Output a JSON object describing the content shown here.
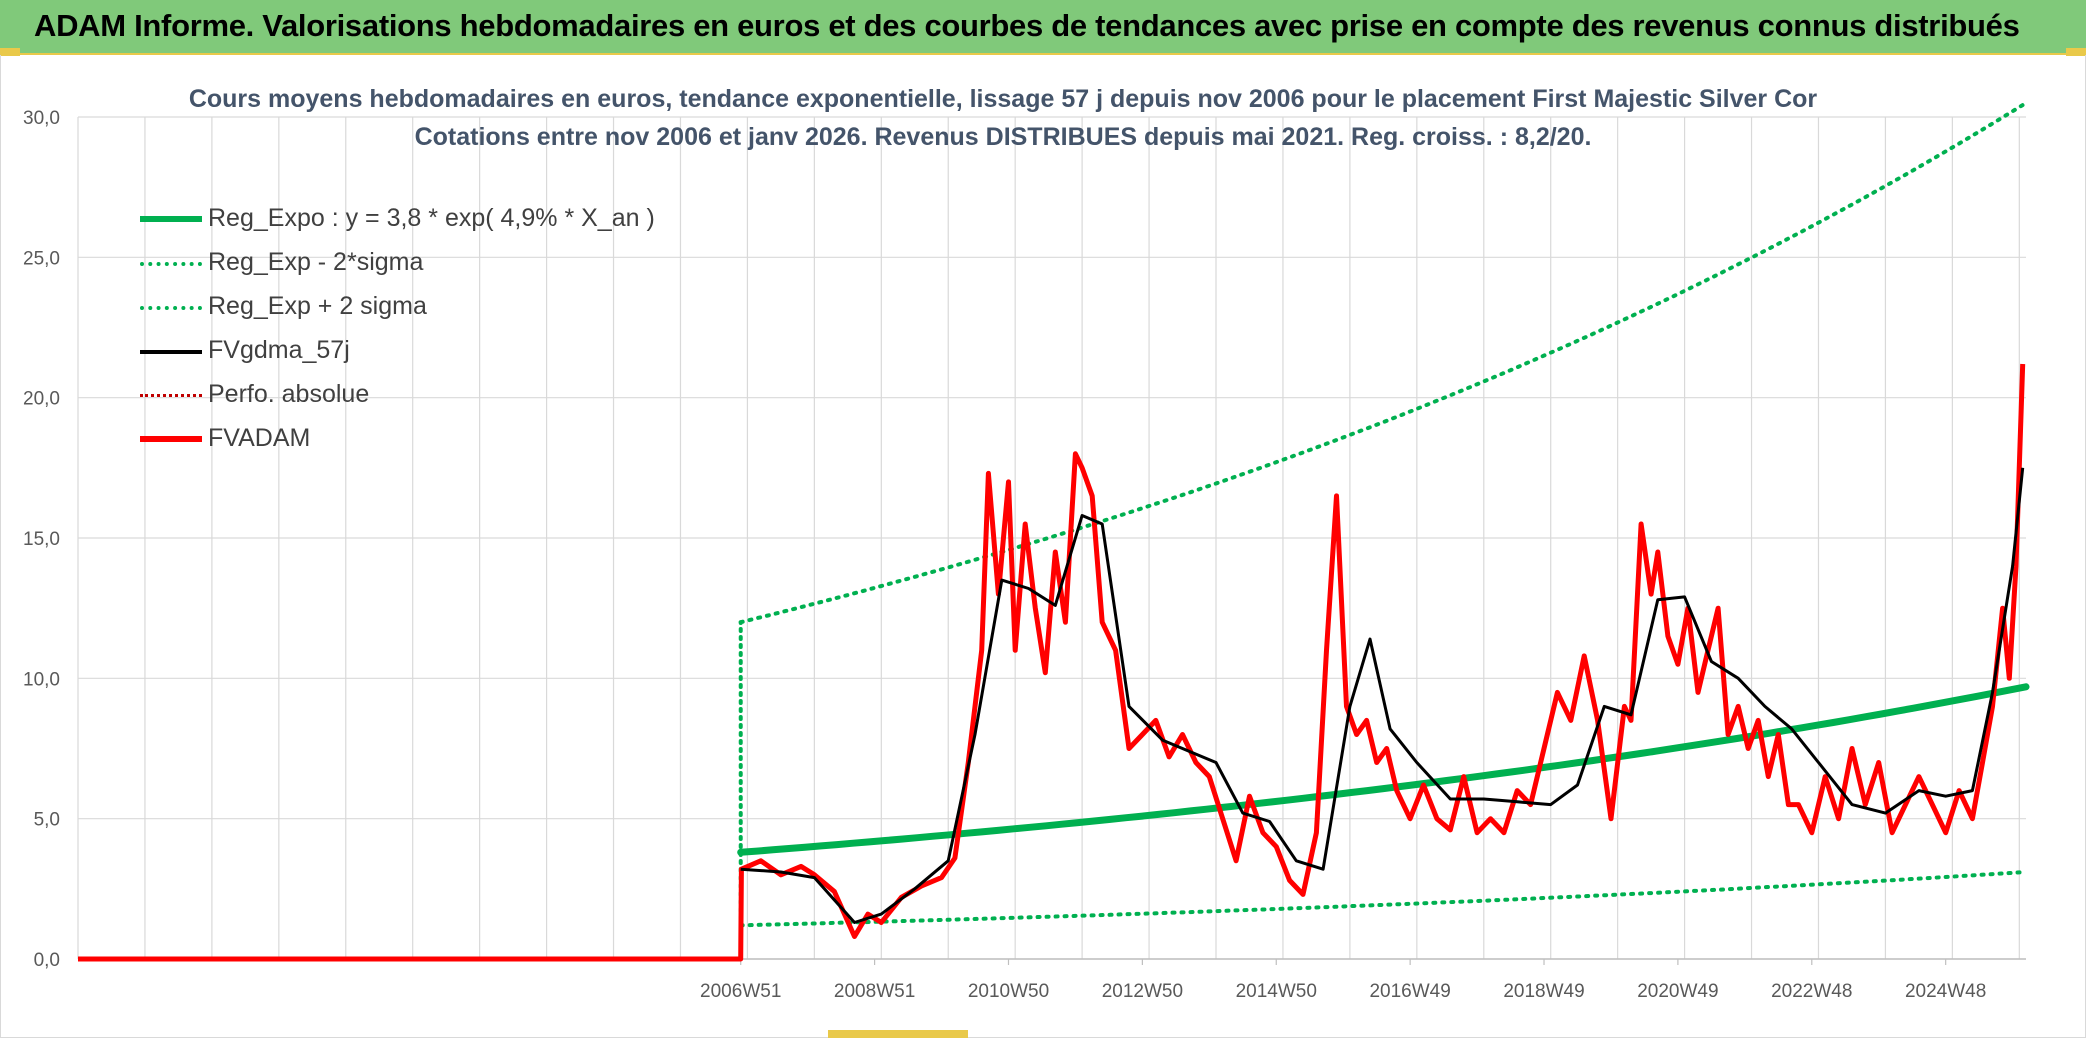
{
  "banner": {
    "title": "ADAM Informe. Valorisations hebdomadaires en euros et des courbes de tendances avec prise en compte des revenus connus distribués"
  },
  "colors": {
    "banner_bg": "#80c97a",
    "accent_yellow": "#e9c94a",
    "title_text": "#44546a",
    "reg_green": "#00b050",
    "sigma_green": "#00b050",
    "gdma_black": "#000000",
    "adam_red": "#ff0000",
    "perf_red": "#c00000",
    "grid": "#d9d9d9"
  },
  "chart_data": {
    "type": "line",
    "title": "Cours moyens hebdomadaires en euros, tendance exponentielle, lissage 57 j depuis nov 2006 pour le placement First Majestic Silver Cor",
    "subtitle": "Cotations entre nov 2006 et janv 2026. Revenus DISTRIBUES depuis mai 2021. Reg. croiss. : 8,2/20.",
    "xlabel": "",
    "ylabel": "",
    "ylim": [
      0,
      30
    ],
    "yticks": [
      "0,0",
      "5,0",
      "10,0",
      "15,0",
      "20,0",
      "25,0",
      "30,0"
    ],
    "xticks": [
      "2006W51",
      "2008W51",
      "2010W50",
      "2012W50",
      "2014W50",
      "2016W49",
      "2018W49",
      "2020W49",
      "2022W48",
      "2024W48"
    ],
    "x_range": [
      1997.0,
      2026.1
    ],
    "data_start": 2006.9,
    "grid": true,
    "legend_position": "top-left",
    "series": [
      {
        "name": "Reg_Expo : y = 3,8 * exp( 4,9% *  X_an )",
        "style": "solid-thick",
        "color": "#00b050",
        "x": [
          2006.9,
          2026.1
        ],
        "values": [
          3.8,
          9.7
        ]
      },
      {
        "name": "Reg_Exp - 2*sigma",
        "style": "dotted",
        "color": "#00b050",
        "x": [
          2006.9,
          2026.1
        ],
        "values": [
          1.2,
          3.1
        ]
      },
      {
        "name": "Reg_Exp + 2 sigma",
        "style": "dotted",
        "color": "#00b050",
        "x": [
          2006.9,
          2026.1
        ],
        "values": [
          12.0,
          30.5
        ]
      },
      {
        "name": "FVgdma_57j",
        "style": "solid",
        "color": "#000000",
        "x": [
          2006.9,
          2007.5,
          2008.0,
          2008.6,
          2009.0,
          2009.5,
          2010.0,
          2010.4,
          2010.8,
          2011.2,
          2011.6,
          2012.0,
          2012.3,
          2012.7,
          2013.2,
          2013.7,
          2014.0,
          2014.4,
          2014.8,
          2015.2,
          2015.6,
          2016.0,
          2016.3,
          2016.6,
          2017.0,
          2017.5,
          2018.0,
          2018.5,
          2019.0,
          2019.4,
          2019.8,
          2020.2,
          2020.6,
          2021.0,
          2021.4,
          2021.8,
          2022.2,
          2022.6,
          2023.0,
          2023.5,
          2024.0,
          2024.5,
          2024.9,
          2025.3,
          2025.6,
          2025.9,
          2026.05
        ],
        "values": [
          3.2,
          3.1,
          2.9,
          1.3,
          1.6,
          2.5,
          3.5,
          8.0,
          13.5,
          13.2,
          12.6,
          15.8,
          15.5,
          9.0,
          7.8,
          7.3,
          7.0,
          5.2,
          4.9,
          3.5,
          3.2,
          9.0,
          11.4,
          8.2,
          7.0,
          5.7,
          5.7,
          5.6,
          5.5,
          6.2,
          9.0,
          8.7,
          12.8,
          12.9,
          10.6,
          10.0,
          9.0,
          8.2,
          7.0,
          5.5,
          5.2,
          6.0,
          5.8,
          6.0,
          9.5,
          14.0,
          17.5
        ]
      },
      {
        "name": "Perfo. absolue",
        "style": "dotted",
        "color": "#c00000",
        "x": [
          1997.0,
          2006.9
        ],
        "values": [
          0.0,
          0.0
        ]
      },
      {
        "name": "FVADAM",
        "style": "solid-thick",
        "color": "#ff0000",
        "x": [
          1997.0,
          2006.9,
          2006.91,
          2007.2,
          2007.5,
          2007.8,
          2008.0,
          2008.3,
          2008.6,
          2008.8,
          2009.0,
          2009.3,
          2009.6,
          2009.9,
          2010.1,
          2010.3,
          2010.5,
          2010.6,
          2010.75,
          2010.9,
          2011.0,
          2011.15,
          2011.3,
          2011.45,
          2011.6,
          2011.75,
          2011.9,
          2012.0,
          2012.15,
          2012.3,
          2012.5,
          2012.7,
          2012.9,
          2013.1,
          2013.3,
          2013.5,
          2013.7,
          2013.9,
          2014.1,
          2014.3,
          2014.5,
          2014.7,
          2014.9,
          2015.1,
          2015.3,
          2015.5,
          2015.65,
          2015.8,
          2015.95,
          2016.1,
          2016.25,
          2016.4,
          2016.55,
          2016.7,
          2016.9,
          2017.1,
          2017.3,
          2017.5,
          2017.7,
          2017.9,
          2018.1,
          2018.3,
          2018.5,
          2018.7,
          2018.9,
          2019.1,
          2019.3,
          2019.5,
          2019.7,
          2019.9,
          2020.1,
          2020.2,
          2020.35,
          2020.5,
          2020.6,
          2020.75,
          2020.9,
          2021.05,
          2021.2,
          2021.35,
          2021.5,
          2021.65,
          2021.8,
          2021.95,
          2022.1,
          2022.25,
          2022.4,
          2022.55,
          2022.7,
          2022.9,
          2023.1,
          2023.3,
          2023.5,
          2023.7,
          2023.9,
          2024.1,
          2024.3,
          2024.5,
          2024.7,
          2024.9,
          2025.1,
          2025.3,
          2025.45,
          2025.6,
          2025.75,
          2025.85,
          2025.95,
          2026.05
        ],
        "values": [
          0.0,
          0.0,
          3.2,
          3.5,
          3.0,
          3.3,
          3.0,
          2.4,
          0.8,
          1.6,
          1.3,
          2.2,
          2.6,
          2.9,
          3.6,
          7.0,
          11.0,
          17.3,
          13.0,
          17.0,
          11.0,
          15.5,
          12.5,
          10.2,
          14.5,
          12.0,
          18.0,
          17.5,
          16.5,
          12.0,
          11.0,
          7.5,
          8.0,
          8.5,
          7.2,
          8.0,
          7.0,
          6.5,
          5.0,
          3.5,
          5.8,
          4.5,
          4.0,
          2.8,
          2.3,
          4.5,
          11.0,
          16.5,
          9.0,
          8.0,
          8.5,
          7.0,
          7.5,
          6.0,
          5.0,
          6.2,
          5.0,
          4.6,
          6.5,
          4.5,
          5.0,
          4.5,
          6.0,
          5.5,
          7.5,
          9.5,
          8.5,
          10.8,
          8.5,
          5.0,
          9.0,
          8.5,
          15.5,
          13.0,
          14.5,
          11.5,
          10.5,
          12.5,
          9.5,
          11.0,
          12.5,
          8.0,
          9.0,
          7.5,
          8.5,
          6.5,
          8.0,
          5.5,
          5.5,
          4.5,
          6.5,
          5.0,
          7.5,
          5.5,
          7.0,
          4.5,
          5.5,
          6.5,
          5.5,
          4.5,
          6.0,
          5.0,
          7.0,
          9.0,
          12.5,
          10.0,
          14.0,
          21.2
        ]
      }
    ]
  },
  "legend": {
    "items": [
      {
        "label": "Reg_Expo : y = 3,8 * exp( 4,9% *  X_an )"
      },
      {
        "label": "Reg_Exp - 2*sigma"
      },
      {
        "label": "Reg_Exp + 2 sigma"
      },
      {
        "label": "FVgdma_57j"
      },
      {
        "label": "Perfo. absolue"
      },
      {
        "label": "FVADAM"
      }
    ]
  }
}
